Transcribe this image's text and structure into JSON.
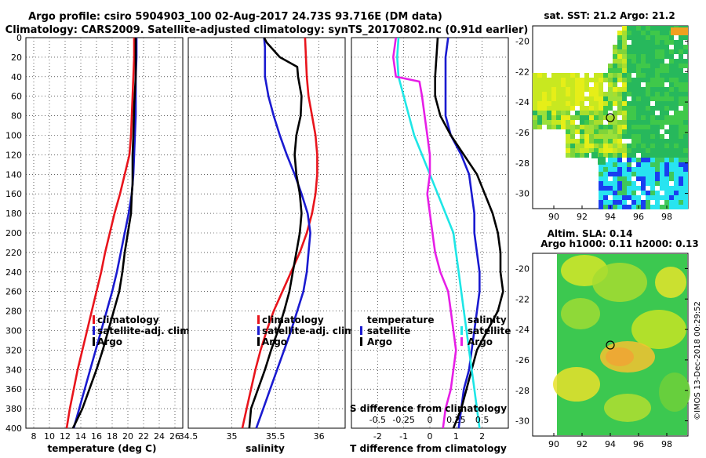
{
  "header": {
    "title_line1": "Argo profile: csiro 5904903_100 02-Aug-2017 24.73S 93.716E (DM data)",
    "title_line2": "Climatology: CARS2009. Satellite-adjusted climatology: synTS_20170802.nc (0.91d earlier)"
  },
  "colors": {
    "climatology": "#e8141c",
    "satellite": "#1a1ad0",
    "argo": "#000000",
    "t_diff": "#1ee6e6",
    "s_diff": "#e61ee6"
  },
  "chart_data": [
    {
      "type": "line",
      "name": "temperature",
      "xlabel": "temperature (deg C)",
      "xlim": [
        7,
        27
      ],
      "ylim": [
        0,
        400
      ],
      "xticks": [
        8,
        10,
        12,
        14,
        16,
        18,
        20,
        22,
        24,
        26
      ],
      "yticks": [
        0,
        20,
        40,
        60,
        80,
        100,
        120,
        140,
        160,
        180,
        200,
        220,
        240,
        260,
        280,
        300,
        320,
        340,
        360,
        380,
        400
      ],
      "legend": {
        "position": "lower-right",
        "entries": [
          "climatology",
          "satellite-adj. clim.",
          "Argo"
        ]
      },
      "series": [
        {
          "name": "climatology",
          "points": [
            [
              20.8,
              0
            ],
            [
              20.8,
              20
            ],
            [
              20.7,
              40
            ],
            [
              20.6,
              60
            ],
            [
              20.5,
              80
            ],
            [
              20.4,
              100
            ],
            [
              20.2,
              120
            ],
            [
              19.6,
              140
            ],
            [
              19.0,
              160
            ],
            [
              18.3,
              180
            ],
            [
              17.7,
              200
            ],
            [
              17.1,
              220
            ],
            [
              16.6,
              240
            ],
            [
              16.0,
              260
            ],
            [
              15.4,
              280
            ],
            [
              14.8,
              300
            ],
            [
              14.2,
              320
            ],
            [
              13.6,
              340
            ],
            [
              13.1,
              360
            ],
            [
              12.6,
              380
            ],
            [
              12.2,
              400
            ]
          ]
        },
        {
          "name": "satellite-adj. clim.",
          "points": [
            [
              21.1,
              0
            ],
            [
              21.1,
              20
            ],
            [
              21.0,
              40
            ],
            [
              21.0,
              60
            ],
            [
              21.0,
              80
            ],
            [
              20.9,
              100
            ],
            [
              20.8,
              120
            ],
            [
              20.7,
              140
            ],
            [
              20.5,
              160
            ],
            [
              20.1,
              180
            ],
            [
              19.6,
              200
            ],
            [
              19.1,
              220
            ],
            [
              18.6,
              240
            ],
            [
              18.0,
              260
            ],
            [
              17.3,
              280
            ],
            [
              16.6,
              300
            ],
            [
              15.9,
              320
            ],
            [
              15.2,
              340
            ],
            [
              14.5,
              360
            ],
            [
              13.8,
              380
            ],
            [
              13.1,
              400
            ]
          ]
        },
        {
          "name": "Argo",
          "points": [
            [
              21.0,
              0
            ],
            [
              21.0,
              20
            ],
            [
              21.0,
              40
            ],
            [
              20.9,
              55
            ],
            [
              20.8,
              70
            ],
            [
              20.7,
              100
            ],
            [
              20.6,
              120
            ],
            [
              20.6,
              150
            ],
            [
              20.5,
              160
            ],
            [
              20.4,
              180
            ],
            [
              20.0,
              200
            ],
            [
              19.6,
              220
            ],
            [
              19.3,
              240
            ],
            [
              18.9,
              260
            ],
            [
              18.2,
              280
            ],
            [
              17.5,
              300
            ],
            [
              16.8,
              320
            ],
            [
              16.0,
              340
            ],
            [
              15.1,
              360
            ],
            [
              14.2,
              380
            ],
            [
              13.0,
              400
            ]
          ]
        }
      ]
    },
    {
      "type": "line",
      "name": "salinity",
      "xlabel": "salinity",
      "xlim": [
        34.5,
        36.3
      ],
      "ylim": [
        0,
        400
      ],
      "xticks": [
        34.5,
        35,
        35.5,
        36
      ],
      "xticklabels": [
        "34.5",
        "35",
        "35.5",
        "36"
      ],
      "legend": {
        "position": "lower-right",
        "entries": [
          "climatology",
          "satellite-adj. clim.",
          "Argo"
        ]
      },
      "series": [
        {
          "name": "climatology",
          "points": [
            [
              35.84,
              0
            ],
            [
              35.85,
              20
            ],
            [
              35.86,
              40
            ],
            [
              35.88,
              60
            ],
            [
              35.92,
              80
            ],
            [
              35.96,
              100
            ],
            [
              35.98,
              120
            ],
            [
              35.98,
              140
            ],
            [
              35.96,
              160
            ],
            [
              35.92,
              180
            ],
            [
              35.86,
              200
            ],
            [
              35.78,
              220
            ],
            [
              35.68,
              240
            ],
            [
              35.58,
              260
            ],
            [
              35.48,
              280
            ],
            [
              35.4,
              300
            ],
            [
              35.33,
              320
            ],
            [
              35.27,
              340
            ],
            [
              35.22,
              360
            ],
            [
              35.17,
              380
            ],
            [
              35.12,
              400
            ]
          ]
        },
        {
          "name": "satellite-adj. clim.",
          "points": [
            [
              35.37,
              0
            ],
            [
              35.38,
              10
            ],
            [
              35.38,
              40
            ],
            [
              35.42,
              60
            ],
            [
              35.48,
              80
            ],
            [
              35.55,
              100
            ],
            [
              35.63,
              120
            ],
            [
              35.72,
              140
            ],
            [
              35.8,
              160
            ],
            [
              35.87,
              180
            ],
            [
              35.9,
              200
            ],
            [
              35.88,
              220
            ],
            [
              35.86,
              240
            ],
            [
              35.82,
              260
            ],
            [
              35.75,
              280
            ],
            [
              35.68,
              300
            ],
            [
              35.6,
              320
            ],
            [
              35.52,
              340
            ],
            [
              35.44,
              360
            ],
            [
              35.36,
              380
            ],
            [
              35.28,
              400
            ]
          ]
        },
        {
          "name": "Argo",
          "points": [
            [
              35.37,
              0
            ],
            [
              35.4,
              5
            ],
            [
              35.55,
              20
            ],
            [
              35.75,
              30
            ],
            [
              35.76,
              40
            ],
            [
              35.8,
              60
            ],
            [
              35.79,
              80
            ],
            [
              35.74,
              100
            ],
            [
              35.72,
              120
            ],
            [
              35.74,
              140
            ],
            [
              35.78,
              160
            ],
            [
              35.8,
              180
            ],
            [
              35.78,
              200
            ],
            [
              35.74,
              220
            ],
            [
              35.7,
              240
            ],
            [
              35.66,
              260
            ],
            [
              35.6,
              280
            ],
            [
              35.53,
              300
            ],
            [
              35.45,
              320
            ],
            [
              35.38,
              340
            ],
            [
              35.3,
              360
            ],
            [
              35.22,
              380
            ],
            [
              35.2,
              400
            ]
          ]
        }
      ]
    },
    {
      "type": "line",
      "name": "difference_from_climatology",
      "xlabel": "T difference from climatology",
      "xlim": [
        -3,
        3
      ],
      "ylim": [
        0,
        400
      ],
      "xticks": [
        -2,
        -1,
        0,
        1,
        2
      ],
      "xticklabels": [
        "-2",
        "-1",
        "0",
        "1",
        "2"
      ],
      "top_axis": {
        "label": "S difference from climatology",
        "ticklabels": [
          "-0.5",
          "-0.25",
          "0",
          "0.25",
          "0.5"
        ],
        "tick_positions_t_units": [
          -2,
          -1,
          0,
          1,
          2
        ]
      },
      "legend": {
        "entries_left": [
          "temperature",
          "satellite",
          "Argo"
        ],
        "entries_right": [
          "salinity",
          "satellite",
          "Argo"
        ]
      },
      "series": [
        {
          "name": "T satellite",
          "points": [
            [
              0.7,
              0
            ],
            [
              0.6,
              20
            ],
            [
              0.6,
              40
            ],
            [
              0.6,
              60
            ],
            [
              0.6,
              80
            ],
            [
              0.8,
              100
            ],
            [
              1.2,
              120
            ],
            [
              1.5,
              140
            ],
            [
              1.6,
              160
            ],
            [
              1.7,
              180
            ],
            [
              1.7,
              200
            ],
            [
              1.8,
              220
            ],
            [
              1.9,
              240
            ],
            [
              1.9,
              260
            ],
            [
              1.8,
              280
            ],
            [
              1.7,
              300
            ],
            [
              1.6,
              320
            ],
            [
              1.5,
              340
            ],
            [
              1.3,
              360
            ],
            [
              1.2,
              380
            ],
            [
              1.1,
              400
            ]
          ]
        },
        {
          "name": "T Argo",
          "points": [
            [
              0.3,
              0
            ],
            [
              0.2,
              40
            ],
            [
              0.2,
              60
            ],
            [
              0.4,
              80
            ],
            [
              0.8,
              100
            ],
            [
              1.3,
              120
            ],
            [
              1.8,
              140
            ],
            [
              2.1,
              160
            ],
            [
              2.4,
              180
            ],
            [
              2.6,
              200
            ],
            [
              2.7,
              220
            ],
            [
              2.7,
              240
            ],
            [
              2.8,
              260
            ],
            [
              2.6,
              280
            ],
            [
              2.2,
              300
            ],
            [
              1.8,
              320
            ],
            [
              1.6,
              340
            ],
            [
              1.4,
              360
            ],
            [
              1.2,
              380
            ],
            [
              0.9,
              400
            ]
          ]
        },
        {
          "name": "S satellite",
          "points": [
            [
              -1.2,
              0
            ],
            [
              -1.25,
              20
            ],
            [
              -1.2,
              40
            ],
            [
              -1.0,
              60
            ],
            [
              -0.8,
              80
            ],
            [
              -0.6,
              100
            ],
            [
              -0.3,
              120
            ],
            [
              0.0,
              140
            ],
            [
              0.3,
              160
            ],
            [
              0.6,
              180
            ],
            [
              0.9,
              200
            ],
            [
              1.0,
              220
            ],
            [
              1.1,
              240
            ],
            [
              1.2,
              260
            ],
            [
              1.3,
              280
            ],
            [
              1.4,
              300
            ],
            [
              1.5,
              320
            ],
            [
              1.6,
              340
            ],
            [
              1.7,
              360
            ],
            [
              1.8,
              380
            ],
            [
              1.9,
              400
            ]
          ]
        },
        {
          "name": "S Argo",
          "points": [
            [
              -1.3,
              0
            ],
            [
              -1.4,
              20
            ],
            [
              -1.3,
              40
            ],
            [
              -0.4,
              45
            ],
            [
              -0.3,
              60
            ],
            [
              -0.2,
              80
            ],
            [
              -0.1,
              100
            ],
            [
              0.0,
              120
            ],
            [
              0.0,
              140
            ],
            [
              -0.1,
              160
            ],
            [
              0.0,
              180
            ],
            [
              0.1,
              200
            ],
            [
              0.2,
              220
            ],
            [
              0.4,
              240
            ],
            [
              0.7,
              260
            ],
            [
              0.8,
              280
            ],
            [
              0.9,
              300
            ],
            [
              1.0,
              320
            ],
            [
              0.9,
              340
            ],
            [
              0.8,
              360
            ],
            [
              0.6,
              380
            ],
            [
              0.5,
              400
            ]
          ]
        }
      ]
    },
    {
      "type": "heatmap",
      "name": "sst_map",
      "title": "sat. SST: 21.2 Argo: 21.2",
      "xticklabels": [
        "90",
        "92",
        "94",
        "96",
        "98"
      ],
      "yticklabels": [
        "-20",
        "-22",
        "-24",
        "-26",
        "-28",
        "-30"
      ],
      "xlim": [
        88.5,
        99.5
      ],
      "ylim": [
        -31,
        -19
      ],
      "marker": {
        "lon": 93.716,
        "lat": -24.73
      }
    },
    {
      "type": "heatmap",
      "name": "altimetry_map",
      "title_line1": "Altim. SLA: 0.14",
      "title_line2": "Argo h1000: 0.11 h2000: 0.13",
      "xticklabels": [
        "90",
        "92",
        "94",
        "96",
        "98"
      ],
      "yticklabels": [
        "-20",
        "-22",
        "-24",
        "-26",
        "-28",
        "-30"
      ],
      "xlim": [
        88.5,
        99.5
      ],
      "ylim": [
        -31,
        -19
      ],
      "marker": {
        "lon": 93.716,
        "lat": -24.73
      }
    }
  ],
  "footer": {
    "credit": "©IMOS 13-Dec-2018 00:29:52"
  }
}
